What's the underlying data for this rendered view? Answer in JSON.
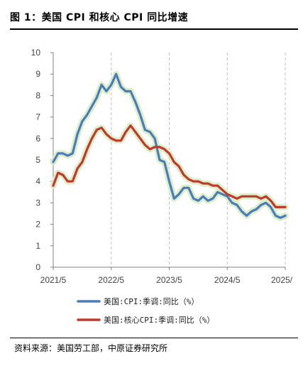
{
  "header": {
    "title": "图 1：美国 CPI 和核心 CPI 同比增速"
  },
  "footer": {
    "source": "资料来源：美国劳工部，中原证券研究所"
  },
  "colors": {
    "cpi": "#4a7cbb",
    "core": "#c0392b",
    "axis": "#808080",
    "grid": "#bfbfbf",
    "glow": "#d9ecc4"
  },
  "chart_data": {
    "type": "line",
    "title": "",
    "xlabel": "",
    "ylabel": "",
    "ylim": [
      0,
      10
    ],
    "yticks": [
      "0",
      "1",
      "2",
      "3",
      "4",
      "5",
      "6",
      "7",
      "8",
      "9",
      "10"
    ],
    "xticks": [
      "2021/5",
      "2022/5",
      "2023/5",
      "2024/5",
      "2025/"
    ],
    "grid": "vertical dashed at year ticks",
    "legend": "bottom",
    "x_start": "2021/5",
    "x_step": "1 month",
    "series": [
      {
        "name": "美国:CPI:季调:同比（%）",
        "color": "#4a7cbb",
        "values": [
          4.9,
          5.3,
          5.3,
          5.2,
          5.3,
          6.2,
          6.8,
          7.1,
          7.5,
          7.9,
          8.5,
          8.2,
          8.5,
          9.0,
          8.4,
          8.2,
          8.2,
          7.7,
          7.1,
          6.4,
          6.3,
          6.0,
          5.0,
          4.9,
          4.0,
          3.2,
          3.4,
          3.7,
          3.7,
          3.2,
          3.1,
          3.3,
          3.1,
          3.2,
          3.5,
          3.4,
          3.3,
          3.0,
          2.9,
          2.6,
          2.4,
          2.6,
          2.7,
          2.9,
          3.0,
          2.8,
          2.4,
          2.3,
          2.4
        ]
      },
      {
        "name": "美国:核心CPI:季调:同比（%）",
        "color": "#c0392b",
        "values": [
          3.8,
          4.4,
          4.3,
          4.0,
          4.0,
          4.6,
          4.9,
          5.5,
          6.0,
          6.4,
          6.5,
          6.2,
          6.0,
          5.9,
          5.9,
          6.3,
          6.6,
          6.3,
          6.0,
          5.7,
          5.5,
          5.6,
          5.6,
          5.5,
          5.3,
          4.9,
          4.7,
          4.3,
          4.1,
          4.0,
          4.0,
          3.9,
          3.9,
          3.8,
          3.8,
          3.6,
          3.4,
          3.3,
          3.2,
          3.3,
          3.3,
          3.3,
          3.3,
          3.2,
          3.3,
          3.1,
          2.8,
          2.8,
          2.8
        ]
      }
    ]
  }
}
